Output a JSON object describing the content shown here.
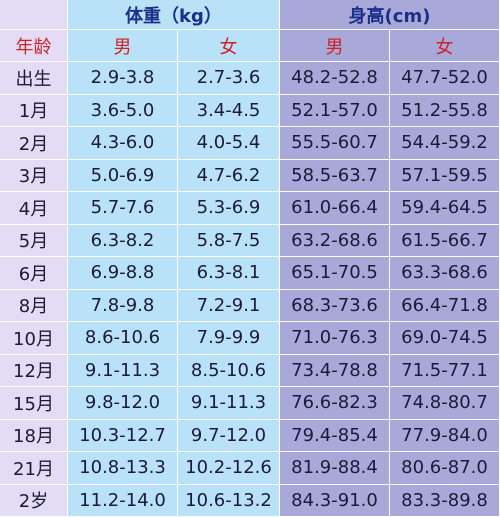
{
  "header": {
    "groups": [
      "体重（kg）",
      "身高(cm)"
    ],
    "columns": [
      "年龄",
      "男",
      "女",
      "男",
      "女"
    ]
  },
  "table": {
    "rows": [
      [
        "出生",
        "2.9-3.8",
        "2.7-3.6",
        "48.2-52.8",
        "47.7-52.0"
      ],
      [
        "1月",
        "3.6-5.0",
        "3.4-4.5",
        "52.1-57.0",
        "51.2-55.8"
      ],
      [
        "2月",
        "4.3-6.0",
        "4.0-5.4",
        "55.5-60.7",
        "54.4-59.2"
      ],
      [
        "3月",
        "5.0-6.9",
        "4.7-6.2",
        "58.5-63.7",
        "57.1-59.5"
      ],
      [
        "4月",
        "5.7-7.6",
        "5.3-6.9",
        "61.0-66.4",
        "59.4-64.5"
      ],
      [
        "5月",
        "6.3-8.2",
        "5.8-7.5",
        "63.2-68.6",
        "61.5-66.7"
      ],
      [
        "6月",
        "6.9-8.8",
        "6.3-8.1",
        "65.1-70.5",
        "63.3-68.6"
      ],
      [
        "8月",
        "7.8-9.8",
        "7.2-9.1",
        "68.3-73.6",
        "66.4-71.8"
      ],
      [
        "10月",
        "8.6-10.6",
        "7.9-9.9",
        "71.0-76.3",
        "69.0-74.5"
      ],
      [
        "12月",
        "9.1-11.3",
        "8.5-10.6",
        "73.4-78.8",
        "71.5-77.1"
      ],
      [
        "15月",
        "9.8-12.0",
        "9.1-11.3",
        "76.6-82.3",
        "74.8-80.7"
      ],
      [
        "18月",
        "10.3-12.7",
        "9.7-12.0",
        "79.4-85.4",
        "77.9-84.0"
      ],
      [
        "21月",
        "10.8-13.3",
        "10.2-12.6",
        "81.9-88.4",
        "80.6-87.0"
      ],
      [
        "2岁",
        "11.2-14.0",
        "10.6-13.2",
        "84.3-91.0",
        "83.3-89.8"
      ]
    ]
  }
}
